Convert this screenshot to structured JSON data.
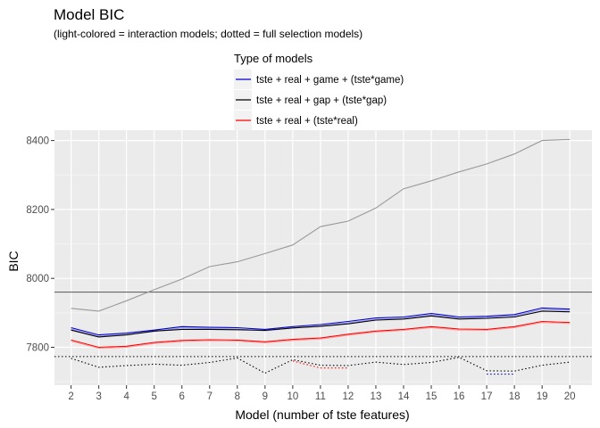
{
  "chart_data": {
    "type": "line",
    "title": "Model BIC",
    "subtitle": "(light-colored = interaction models;  dotted = full selection models)",
    "xlabel": "Model (number of tste features)",
    "ylabel": "BIC",
    "xlim": [
      1.4,
      20.8
    ],
    "ylim": [
      7690,
      8430
    ],
    "grid": true,
    "legend_title": "Type of models",
    "legend_position": "top",
    "x_ticks": [
      2,
      3,
      4,
      5,
      6,
      7,
      8,
      9,
      10,
      11,
      12,
      13,
      14,
      15,
      16,
      17,
      18,
      19,
      20
    ],
    "y_ticks": [
      7800,
      8000,
      8200,
      8400
    ],
    "x": [
      2,
      3,
      4,
      5,
      6,
      7,
      8,
      9,
      10,
      11,
      12,
      13,
      14,
      15,
      16,
      17,
      18,
      19,
      20
    ],
    "hlines": [
      {
        "y": 7960,
        "color": "#555555"
      },
      {
        "y": 7773,
        "color": "#000000",
        "dotted": true
      }
    ],
    "series": [
      {
        "name": "tste + real + game + (tste*game)",
        "legend": true,
        "color": "#0000cc",
        "values": [
          7857,
          7836,
          7841,
          7850,
          7860,
          7858,
          7857,
          7852,
          7860,
          7866,
          7875,
          7885,
          7888,
          7898,
          7888,
          7890,
          7895,
          7914,
          7911
        ]
      },
      {
        "name": "",
        "legend": false,
        "color": "#9999ee",
        "values": [
          7853,
          7832,
          7837,
          7846,
          7856,
          7854,
          7853,
          7848,
          7856,
          7862,
          7871,
          7881,
          7884,
          7894,
          7884,
          7886,
          7891,
          7910,
          7907
        ]
      },
      {
        "name": "tste + real + gap + (tste*gap)",
        "legend": true,
        "color": "#000000",
        "values": [
          7850,
          7830,
          7836,
          7847,
          7852,
          7852,
          7851,
          7849,
          7856,
          7861,
          7868,
          7879,
          7882,
          7891,
          7882,
          7884,
          7888,
          7905,
          7903
        ]
      },
      {
        "name": "",
        "legend": false,
        "color": "#999999",
        "values": [
          7913,
          7905,
          7935,
          7967,
          7998,
          8034,
          8048,
          8072,
          8097,
          8150,
          8166,
          8204,
          8260,
          8283,
          8309,
          8332,
          8361,
          8400,
          8403
        ]
      },
      {
        "name": "tste + real + (tste*real)",
        "legend": true,
        "color": "#ff0000",
        "values": [
          7821,
          7800,
          7803,
          7814,
          7820,
          7822,
          7821,
          7816,
          7823,
          7827,
          7838,
          7847,
          7852,
          7860,
          7853,
          7852,
          7860,
          7875,
          7872
        ]
      },
      {
        "name": "",
        "legend": false,
        "color": "#ff9999",
        "values": [
          7818,
          7797,
          7800,
          7811,
          7817,
          7819,
          7818,
          7813,
          7820,
          7824,
          7835,
          7844,
          7849,
          7857,
          7850,
          7849,
          7857,
          7872,
          7869
        ]
      },
      {
        "name": "",
        "legend": false,
        "color": "#000000",
        "dotted": true,
        "values": [
          7768,
          7742,
          7747,
          7751,
          7748,
          7756,
          7769,
          7725,
          7764,
          7748,
          7747,
          7757,
          7750,
          7756,
          7771,
          7732,
          7731,
          7748,
          7757
        ]
      },
      {
        "name": "",
        "legend": false,
        "color": "#ff0000",
        "dotted": true,
        "values": [
          null,
          null,
          null,
          null,
          null,
          null,
          null,
          null,
          7760,
          7740,
          7740,
          null,
          null,
          null,
          null,
          null,
          null,
          null,
          null
        ]
      },
      {
        "name": "",
        "legend": false,
        "color": "#0000cc",
        "dotted": true,
        "values": [
          null,
          null,
          null,
          null,
          null,
          null,
          null,
          null,
          null,
          null,
          null,
          null,
          null,
          null,
          null,
          7722,
          7722,
          null,
          null
        ]
      }
    ]
  }
}
